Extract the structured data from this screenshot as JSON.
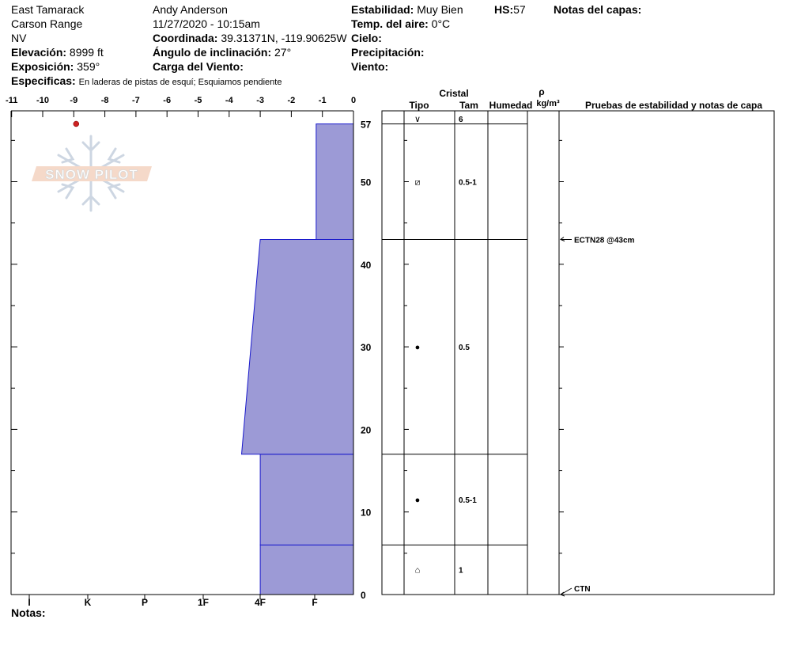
{
  "header": {
    "location": "East Tamarack",
    "range": "Carson Range",
    "state": "NV",
    "elevation_label": "Elevación:",
    "elevation": "8999 ft",
    "aspect_label": "Exposición:",
    "aspect": "359°",
    "specifics_label": "Especificas:",
    "specifics": "En laderas de pistas de esquí; Esquiamos pendiente",
    "observer": "Andy Anderson",
    "datetime": "11/27/2020 - 10:15am",
    "coord_label": "Coordinada:",
    "coord": "39.31371N, -119.90625W",
    "slope_label": "Ángulo de inclinación:",
    "slope": "27°",
    "wind_load_label": "Carga del Viento:",
    "wind_load": "",
    "stability_label": "Estabilidad:",
    "stability": "Muy Bien",
    "air_temp_label": "Temp. del aire:",
    "air_temp": "0°C",
    "sky_label": "Cielo:",
    "sky": "",
    "precip_label": "Precipitación:",
    "precip": "",
    "wind_label": "Viento:",
    "wind": "",
    "hs_label": "HS:",
    "hs": "57",
    "layer_notes_label": "Notas del capas:"
  },
  "notes_label": "Notas:",
  "logo_text": "SNOW PILOT",
  "colors": {
    "hardness_fill": "#9c9ad6",
    "hardness_stroke": "#1a1acc",
    "temp_point": "#cc2222"
  },
  "table_headers": {
    "crystal": "Cristal",
    "type": "Tipo",
    "size": "Tam",
    "moisture": "Humedad",
    "rho": "ρ",
    "density_unit": "kg/m³",
    "tests": "Pruebas de estabilidad y notas de capa"
  },
  "chart_data": {
    "type": "snow-profile",
    "temp_axis": {
      "ticks": [
        -11,
        -10,
        -9,
        -8,
        -7,
        -6,
        -5,
        -4,
        -3,
        -2,
        -1,
        0
      ],
      "range": [
        -11,
        0
      ]
    },
    "height_axis": {
      "ticks": [
        0,
        10,
        20,
        30,
        40,
        50
      ],
      "top_label": 57,
      "range": [
        0,
        57
      ]
    },
    "hardness_axis": {
      "labels": [
        "I",
        "K",
        "P",
        "1F",
        "4F",
        "F"
      ]
    },
    "temperature_points": [
      {
        "temp": -9,
        "height": 57
      }
    ],
    "hardness_profile": [
      {
        "bottom": 0,
        "top": 6,
        "hardness_bottom": -3,
        "hardness_top": -3
      },
      {
        "bottom": 6,
        "top": 17,
        "hardness_bottom": -3,
        "hardness_top": -3
      },
      {
        "bottom": 17,
        "top": 43,
        "hardness_bottom": -3.6,
        "hardness_top": -3
      },
      {
        "bottom": 43,
        "top": 57,
        "hardness_bottom": -1.2,
        "hardness_top": -1.2
      }
    ],
    "layers": [
      {
        "bottom": 57,
        "top": 57,
        "crystal_symbol": "∨",
        "size": "6"
      },
      {
        "bottom": 43,
        "top": 57,
        "crystal_symbol": "⧄",
        "size": "0.5-1"
      },
      {
        "bottom": 17,
        "top": 43,
        "crystal_symbol": "●",
        "size": "0.5"
      },
      {
        "bottom": 6,
        "top": 17,
        "crystal_symbol": "●",
        "size": "0.5-1"
      },
      {
        "bottom": 0,
        "top": 6,
        "crystal_symbol": "⌂",
        "size": "1"
      }
    ],
    "stability_tests": [
      {
        "height": 43,
        "label": "ECTN28 @43cm"
      },
      {
        "height": 0,
        "label": "CTN"
      }
    ]
  }
}
